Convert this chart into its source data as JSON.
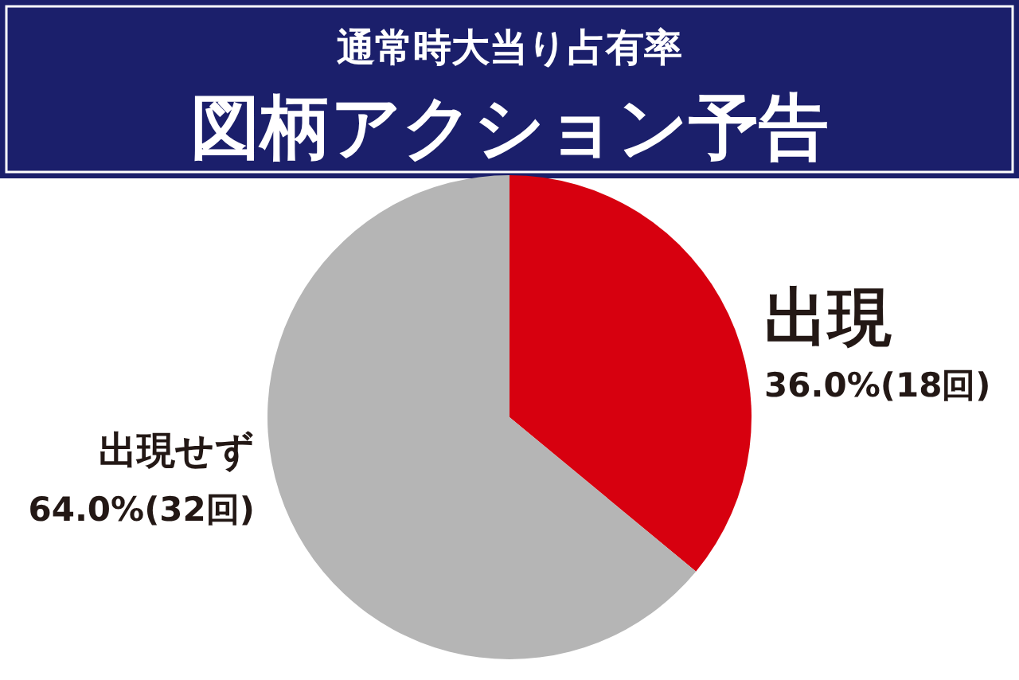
{
  "chart_data": {
    "type": "pie",
    "title": "通常時大当り占有率",
    "subtitle": "図柄アクション予告",
    "categories": [
      "出現",
      "出現せず"
    ],
    "values": [
      36.0,
      64.0
    ],
    "value_labels": [
      "36.0%(18回)",
      "64.0%(32回)"
    ],
    "colors": [
      "#d7000f",
      "#b5b5b5"
    ]
  }
}
